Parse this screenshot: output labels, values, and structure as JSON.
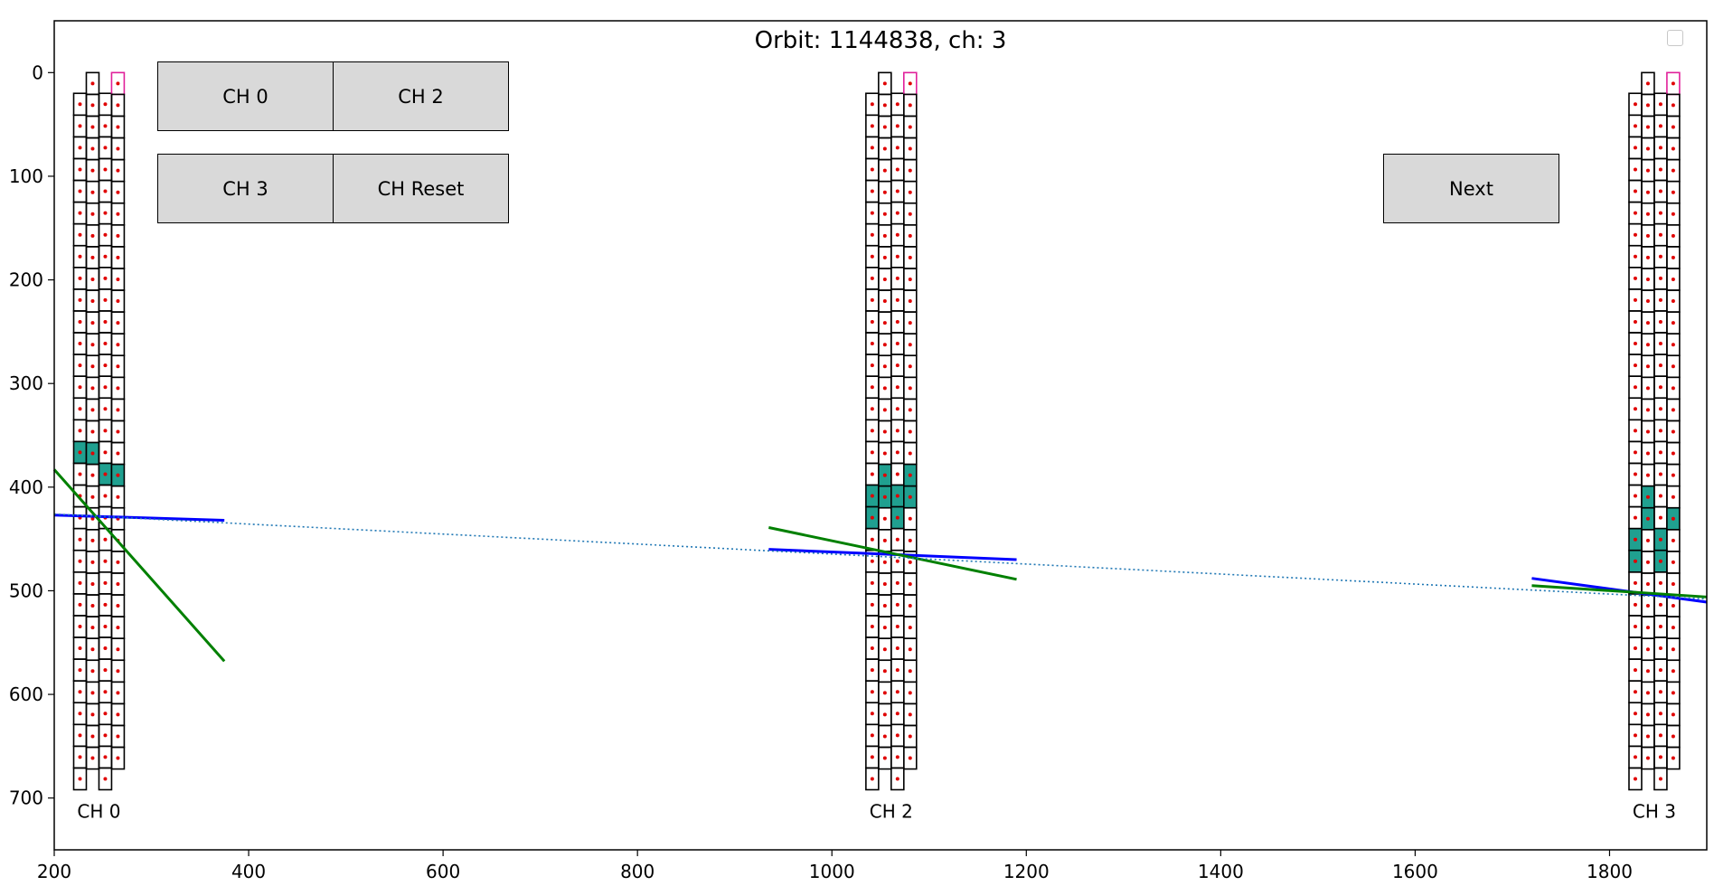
{
  "chart_data": {
    "type": "scatter",
    "title": "Orbit: 1144838, ch: 3",
    "xlim": [
      200,
      1900
    ],
    "ylim": [
      750,
      -50
    ],
    "x_ticks": [
      200,
      400,
      600,
      800,
      1000,
      1200,
      1400,
      1600,
      1800
    ],
    "y_ticks": [
      0,
      100,
      200,
      300,
      400,
      500,
      600,
      700
    ],
    "grid": false,
    "chambers": [
      {
        "label": "CH 0",
        "x0": 220,
        "hits": [
          [
            0,
            16
          ],
          [
            1,
            17
          ],
          [
            2,
            17
          ],
          [
            3,
            18
          ]
        ]
      },
      {
        "label": "CH 2",
        "x0": 1035,
        "hits": [
          [
            0,
            18
          ],
          [
            1,
            18
          ],
          [
            2,
            18
          ],
          [
            3,
            19
          ],
          [
            0,
            19
          ],
          [
            1,
            19
          ],
          [
            2,
            19
          ],
          [
            3,
            18
          ]
        ]
      },
      {
        "label": "CH 3",
        "x0": 1820,
        "hits": [
          [
            0,
            20
          ],
          [
            1,
            19
          ],
          [
            1,
            20
          ],
          [
            2,
            20
          ],
          [
            3,
            20
          ],
          [
            0,
            21
          ],
          [
            2,
            21
          ]
        ]
      }
    ],
    "lines": [
      {
        "color": "#0000ff",
        "style": "solid",
        "points": [
          [
            200,
            427
          ],
          [
            375,
            432
          ]
        ]
      },
      {
        "color": "#008000",
        "style": "solid",
        "points": [
          [
            200,
            383
          ],
          [
            375,
            568
          ]
        ]
      },
      {
        "color": "#0000ff",
        "style": "solid",
        "points": [
          [
            935,
            460
          ],
          [
            1190,
            470
          ]
        ]
      },
      {
        "color": "#008000",
        "style": "solid",
        "points": [
          [
            935,
            439
          ],
          [
            1190,
            489
          ]
        ]
      },
      {
        "color": "#0000ff",
        "style": "solid",
        "points": [
          [
            1720,
            488
          ],
          [
            1900,
            511
          ]
        ]
      },
      {
        "color": "#008000",
        "style": "solid",
        "points": [
          [
            1720,
            495
          ],
          [
            1900,
            506
          ]
        ]
      },
      {
        "color": "#1f77b4",
        "style": "dotted",
        "points": [
          [
            200,
            426
          ],
          [
            1900,
            508
          ]
        ]
      }
    ]
  },
  "buttons": {
    "ch0": "CH 0",
    "ch2": "CH 2",
    "ch3": "CH 3",
    "ch_reset": "CH Reset",
    "next": "Next"
  }
}
